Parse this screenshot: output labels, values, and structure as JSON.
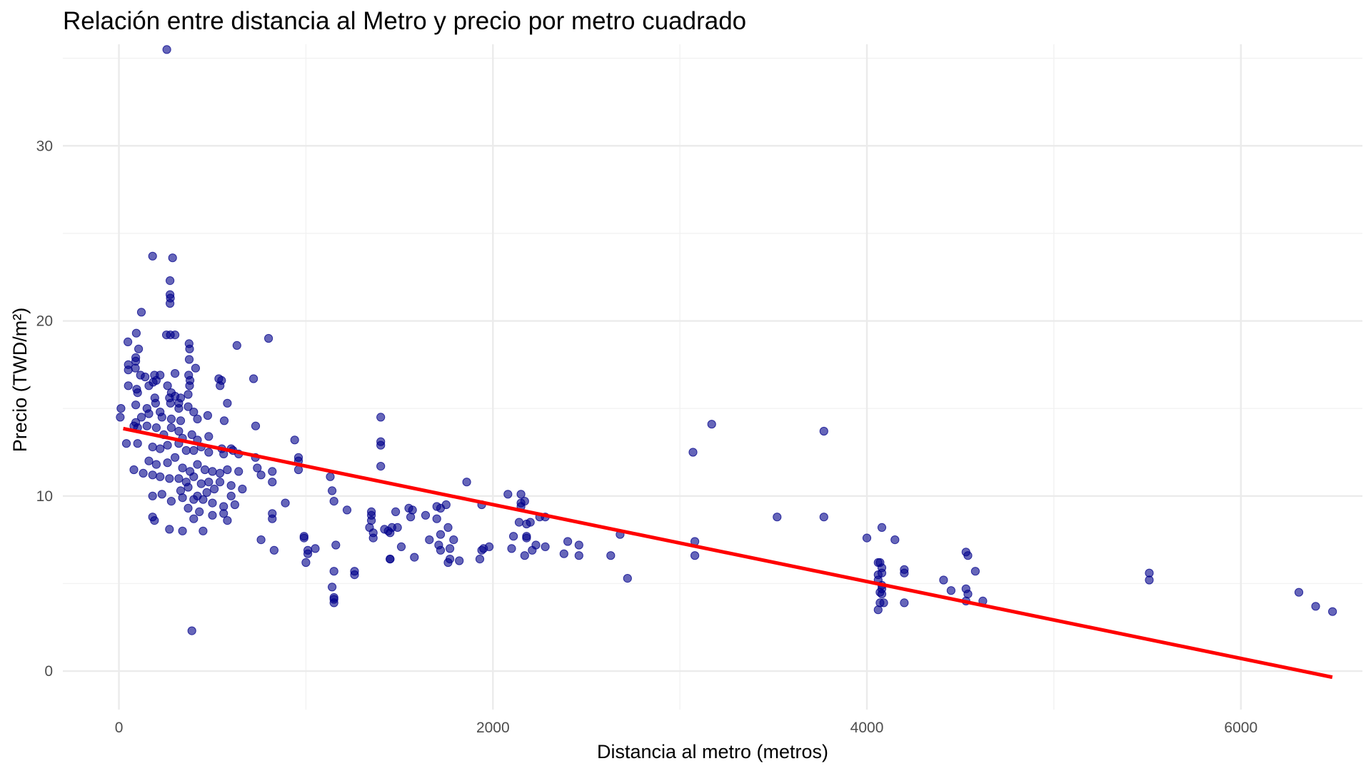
{
  "chart_data": {
    "type": "scatter",
    "title": "Relación entre distancia al Metro y precio por metro cuadrado",
    "xlabel": "Distancia al metro (metros)",
    "ylabel": "Precio (TWD/m²)",
    "xlim": [
      -300,
      6650
    ],
    "ylim": [
      -2.2,
      35.8
    ],
    "x_ticks": [
      0,
      2000,
      4000,
      6000
    ],
    "x_tick_labels": [
      "0",
      "2000",
      "4000",
      "6000"
    ],
    "y_ticks": [
      0,
      10,
      20,
      30
    ],
    "y_tick_labels": [
      "0",
      "10",
      "20",
      "30"
    ],
    "x_minor": [
      -1000,
      1000,
      3000,
      5000
    ],
    "y_minor": [
      5,
      15,
      25,
      35
    ],
    "grid": true,
    "legend": "none",
    "colors": {
      "points": "#00008b",
      "trend": "#ff0000"
    },
    "trend_line": {
      "x": [
        23,
        6489
      ],
      "y": [
        13.85,
        -0.35
      ]
    },
    "series": [
      {
        "points": [
          [
            256,
            35.5
          ],
          [
            180,
            23.7
          ],
          [
            287,
            23.6
          ],
          [
            273,
            22.3
          ],
          [
            273,
            21.5
          ],
          [
            275,
            21.3
          ],
          [
            273,
            21.0
          ],
          [
            120,
            20.5
          ],
          [
            93,
            19.3
          ],
          [
            300,
            19.2
          ],
          [
            254,
            19.2
          ],
          [
            275,
            19.2
          ],
          [
            800,
            19.0
          ],
          [
            48,
            18.8
          ],
          [
            375,
            18.7
          ],
          [
            631,
            18.6
          ],
          [
            378,
            18.4
          ],
          [
            105,
            18.4
          ],
          [
            90,
            17.9
          ],
          [
            90,
            17.7
          ],
          [
            376,
            17.8
          ],
          [
            50,
            17.5
          ],
          [
            88,
            17.3
          ],
          [
            410,
            17.3
          ],
          [
            50,
            17.2
          ],
          [
            373,
            16.9
          ],
          [
            115,
            16.9
          ],
          [
            140,
            16.8
          ],
          [
            190,
            16.9
          ],
          [
            300,
            17.0
          ],
          [
            183,
            16.5
          ],
          [
            380,
            16.6
          ],
          [
            220,
            16.9
          ],
          [
            200,
            16.6
          ],
          [
            549,
            16.6
          ],
          [
            534,
            16.7
          ],
          [
            720,
            16.7
          ],
          [
            378,
            16.3
          ],
          [
            541,
            16.3
          ],
          [
            50,
            16.3
          ],
          [
            95,
            16.1
          ],
          [
            160,
            16.3
          ],
          [
            260,
            16.3
          ],
          [
            100,
            15.9
          ],
          [
            280,
            15.9
          ],
          [
            270,
            15.6
          ],
          [
            300,
            15.7
          ],
          [
            330,
            15.6
          ],
          [
            192,
            15.6
          ],
          [
            370,
            15.8
          ],
          [
            320,
            15.3
          ],
          [
            276,
            15.3
          ],
          [
            196,
            15.3
          ],
          [
            580,
            15.3
          ],
          [
            11,
            15.0
          ],
          [
            90,
            15.2
          ],
          [
            150,
            15.0
          ],
          [
            320,
            15.0
          ],
          [
            370,
            15.1
          ],
          [
            400,
            14.8
          ],
          [
            7,
            14.5
          ],
          [
            90,
            14.2
          ],
          [
            120,
            14.5
          ],
          [
            160,
            14.7
          ],
          [
            220,
            14.8
          ],
          [
            230,
            14.5
          ],
          [
            280,
            14.4
          ],
          [
            330,
            14.3
          ],
          [
            420,
            14.4
          ],
          [
            475,
            14.6
          ],
          [
            563,
            14.3
          ],
          [
            731,
            14.0
          ],
          [
            1400,
            14.5
          ],
          [
            80,
            14.0
          ],
          [
            100,
            13.9
          ],
          [
            150,
            14.0
          ],
          [
            200,
            13.9
          ],
          [
            240,
            13.5
          ],
          [
            280,
            13.9
          ],
          [
            320,
            13.7
          ],
          [
            340,
            13.3
          ],
          [
            390,
            13.5
          ],
          [
            420,
            13.2
          ],
          [
            480,
            13.4
          ],
          [
            600,
            12.7
          ],
          [
            940,
            13.2
          ],
          [
            1400,
            13.1
          ],
          [
            1400,
            12.9
          ],
          [
            3070,
            12.5
          ],
          [
            3170,
            14.1
          ],
          [
            3770,
            13.7
          ],
          [
            40,
            13.0
          ],
          [
            100,
            13.0
          ],
          [
            180,
            12.8
          ],
          [
            220,
            12.7
          ],
          [
            260,
            12.9
          ],
          [
            320,
            13.0
          ],
          [
            360,
            12.6
          ],
          [
            400,
            12.6
          ],
          [
            440,
            12.8
          ],
          [
            480,
            12.5
          ],
          [
            550,
            12.7
          ],
          [
            560,
            12.4
          ],
          [
            610,
            12.6
          ],
          [
            640,
            12.4
          ],
          [
            730,
            12.2
          ],
          [
            960,
            12.2
          ],
          [
            960,
            12.0
          ],
          [
            160,
            12.0
          ],
          [
            200,
            11.8
          ],
          [
            260,
            11.9
          ],
          [
            300,
            12.2
          ],
          [
            340,
            11.6
          ],
          [
            380,
            11.4
          ],
          [
            420,
            11.8
          ],
          [
            460,
            11.5
          ],
          [
            500,
            11.4
          ],
          [
            540,
            11.3
          ],
          [
            580,
            11.5
          ],
          [
            640,
            11.4
          ],
          [
            740,
            11.6
          ],
          [
            820,
            11.4
          ],
          [
            960,
            11.5
          ],
          [
            1130,
            11.1
          ],
          [
            1400,
            11.7
          ],
          [
            80,
            11.5
          ],
          [
            130,
            11.3
          ],
          [
            180,
            11.2
          ],
          [
            220,
            11.1
          ],
          [
            270,
            11.0
          ],
          [
            320,
            11.0
          ],
          [
            360,
            10.8
          ],
          [
            400,
            11.1
          ],
          [
            440,
            10.7
          ],
          [
            480,
            10.8
          ],
          [
            540,
            10.8
          ],
          [
            600,
            10.6
          ],
          [
            660,
            10.4
          ],
          [
            760,
            11.2
          ],
          [
            820,
            10.8
          ],
          [
            1140,
            10.3
          ],
          [
            1860,
            10.8
          ],
          [
            2080,
            10.1
          ],
          [
            2150,
            10.1
          ],
          [
            230,
            10.1
          ],
          [
            330,
            10.3
          ],
          [
            370,
            10.5
          ],
          [
            420,
            10.0
          ],
          [
            470,
            10.2
          ],
          [
            510,
            10.4
          ],
          [
            600,
            10.0
          ],
          [
            180,
            10.0
          ],
          [
            280,
            9.7
          ],
          [
            340,
            9.9
          ],
          [
            400,
            9.8
          ],
          [
            450,
            9.8
          ],
          [
            500,
            9.6
          ],
          [
            560,
            9.4
          ],
          [
            620,
            9.5
          ],
          [
            890,
            9.6
          ],
          [
            1150,
            9.7
          ],
          [
            1750,
            9.5
          ],
          [
            1940,
            9.5
          ],
          [
            2170,
            9.7
          ],
          [
            2150,
            9.4
          ],
          [
            370,
            9.3
          ],
          [
            430,
            9.1
          ],
          [
            560,
            9.0
          ],
          [
            820,
            9.0
          ],
          [
            1220,
            9.2
          ],
          [
            1350,
            9.1
          ],
          [
            1550,
            9.3
          ],
          [
            1570,
            9.2
          ],
          [
            1700,
            9.4
          ],
          [
            1720,
            9.3
          ],
          [
            2150,
            9.6
          ],
          [
            180,
            8.8
          ],
          [
            400,
            8.7
          ],
          [
            500,
            8.9
          ],
          [
            580,
            8.6
          ],
          [
            190,
            8.6
          ],
          [
            820,
            8.7
          ],
          [
            1350,
            8.9
          ],
          [
            1350,
            8.6
          ],
          [
            1480,
            9.1
          ],
          [
            1640,
            8.9
          ],
          [
            1560,
            8.8
          ],
          [
            1700,
            8.7
          ],
          [
            2140,
            8.5
          ],
          [
            2180,
            8.4
          ],
          [
            2200,
            8.5
          ],
          [
            2250,
            8.8
          ],
          [
            2280,
            8.8
          ],
          [
            3520,
            8.8
          ],
          [
            3770,
            8.8
          ],
          [
            270,
            8.1
          ],
          [
            340,
            8.0
          ],
          [
            450,
            8.0
          ],
          [
            1340,
            8.2
          ],
          [
            1420,
            8.1
          ],
          [
            1460,
            8.2
          ],
          [
            1440,
            8.0
          ],
          [
            1490,
            8.2
          ],
          [
            1360,
            7.9
          ],
          [
            1360,
            7.6
          ],
          [
            1450,
            7.9
          ],
          [
            1510,
            7.1
          ],
          [
            1760,
            8.2
          ],
          [
            1720,
            7.8
          ],
          [
            4080,
            8.2
          ],
          [
            4150,
            7.5
          ],
          [
            4000,
            7.6
          ],
          [
            2680,
            7.8
          ],
          [
            3080,
            7.4
          ],
          [
            2400,
            7.4
          ],
          [
            2460,
            7.2
          ],
          [
            2280,
            7.1
          ],
          [
            2230,
            7.2
          ],
          [
            2180,
            7.6
          ],
          [
            2180,
            7.7
          ],
          [
            2110,
            7.7
          ],
          [
            2100,
            7.0
          ],
          [
            2210,
            6.9
          ],
          [
            2170,
            6.6
          ],
          [
            2380,
            6.7
          ],
          [
            2460,
            6.6
          ],
          [
            2630,
            6.6
          ],
          [
            3080,
            6.6
          ],
          [
            1660,
            7.5
          ],
          [
            1710,
            7.2
          ],
          [
            1790,
            7.5
          ],
          [
            1720,
            6.9
          ],
          [
            1770,
            7.0
          ],
          [
            1770,
            6.4
          ],
          [
            1760,
            6.2
          ],
          [
            1820,
            6.3
          ],
          [
            1940,
            6.9
          ],
          [
            1950,
            7.0
          ],
          [
            1980,
            7.1
          ],
          [
            1930,
            6.4
          ],
          [
            1580,
            6.5
          ],
          [
            1450,
            6.4
          ],
          [
            1450,
            6.4
          ],
          [
            760,
            7.5
          ],
          [
            830,
            6.9
          ],
          [
            990,
            7.6
          ],
          [
            990,
            7.7
          ],
          [
            1010,
            6.9
          ],
          [
            1050,
            7.0
          ],
          [
            1010,
            6.7
          ],
          [
            1000,
            6.2
          ],
          [
            1160,
            7.2
          ],
          [
            1150,
            5.7
          ],
          [
            1260,
            5.7
          ],
          [
            1260,
            5.5
          ],
          [
            1140,
            4.8
          ],
          [
            1150,
            4.2
          ],
          [
            1150,
            4.1
          ],
          [
            1150,
            3.9
          ],
          [
            2720,
            5.3
          ],
          [
            4060,
            6.2
          ],
          [
            4080,
            5.9
          ],
          [
            4070,
            6.2
          ],
          [
            4060,
            5.5
          ],
          [
            4080,
            5.6
          ],
          [
            4060,
            5.2
          ],
          [
            4200,
            5.8
          ],
          [
            4200,
            5.6
          ],
          [
            4080,
            4.9
          ],
          [
            4070,
            4.5
          ],
          [
            4080,
            4.7
          ],
          [
            4080,
            4.4
          ],
          [
            4070,
            3.9
          ],
          [
            4090,
            3.9
          ],
          [
            4060,
            3.5
          ],
          [
            4200,
            3.9
          ],
          [
            4410,
            5.2
          ],
          [
            4450,
            4.6
          ],
          [
            4530,
            6.8
          ],
          [
            4540,
            6.6
          ],
          [
            4580,
            5.7
          ],
          [
            4530,
            4.7
          ],
          [
            4540,
            4.4
          ],
          [
            4530,
            4.0
          ],
          [
            4620,
            4.0
          ],
          [
            5510,
            5.6
          ],
          [
            5510,
            5.2
          ],
          [
            6310,
            4.5
          ],
          [
            6400,
            3.7
          ],
          [
            6490,
            3.4
          ],
          [
            390,
            2.3
          ]
        ]
      }
    ]
  }
}
